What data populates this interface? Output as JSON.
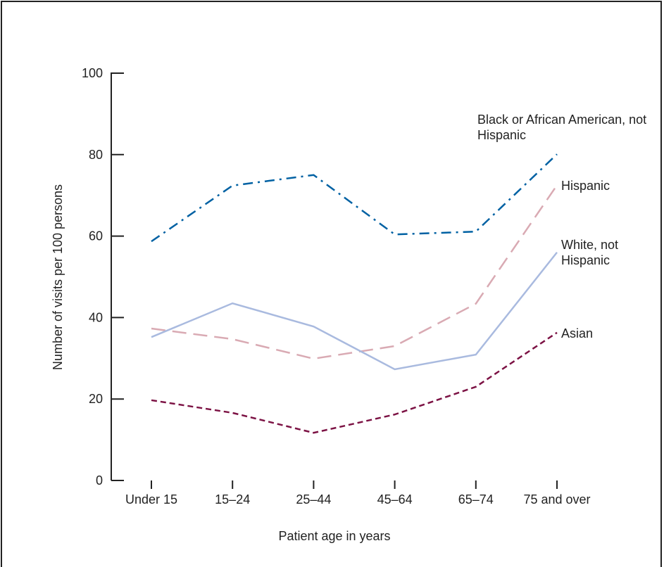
{
  "chart_data": {
    "type": "line",
    "x_label": "Patient age in years",
    "y_label": "Number of visits per 100 persons",
    "categories": [
      "Under 15",
      "15–24",
      "25–44",
      "45–64",
      "65–74",
      "75 and over"
    ],
    "ylim": [
      0,
      100
    ],
    "yticks": [
      0,
      20,
      40,
      60,
      80,
      100
    ],
    "series": [
      {
        "name": "Black or African American, not Hispanic",
        "color": "#0061a3",
        "values": [
          58.7,
          72.4,
          75.0,
          60.4,
          61.1,
          80.1
        ]
      },
      {
        "name": "Hispanic",
        "color": "#d9aab3",
        "values": [
          37.3,
          34.7,
          29.9,
          33.0,
          43.4,
          72.5
        ]
      },
      {
        "name": "White, not Hispanic",
        "color": "#a9badf",
        "values": [
          35.2,
          43.5,
          37.8,
          27.3,
          30.9,
          56.0
        ]
      },
      {
        "name": "Asian",
        "color": "#7c1244",
        "values": [
          19.7,
          16.6,
          11.7,
          16.2,
          23.0,
          36.3
        ]
      }
    ]
  }
}
